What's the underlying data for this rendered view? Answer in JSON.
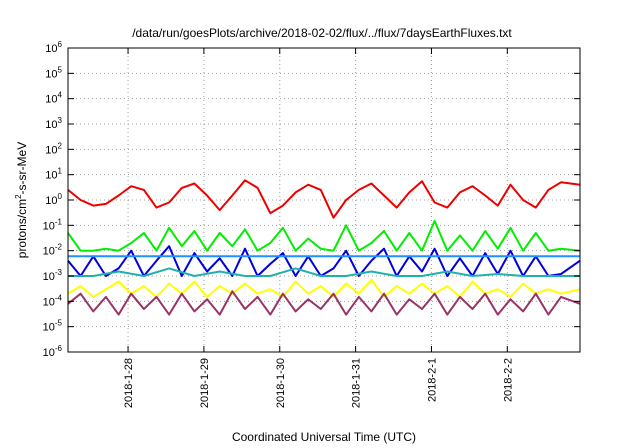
{
  "chart_data": {
    "type": "line",
    "title": "/data/run/goesPlots/archive/2018-02-02/flux/../flux/7daysEarthFluxes.txt",
    "xlabel": "Coordinated Universal Time (UTC)",
    "ylabel": "protons/cm2-s-sr-MeV",
    "ylabel_parts": {
      "pre": "protons/cm",
      "sup": "2",
      "post": "-s-sr-MeV"
    },
    "y_scale": "log",
    "ylim": [
      1e-06,
      1000000.0
    ],
    "y_ticks": [
      {
        "base": "10",
        "exp": "-6"
      },
      {
        "base": "10",
        "exp": "-5"
      },
      {
        "base": "10",
        "exp": "-4"
      },
      {
        "base": "10",
        "exp": "-3"
      },
      {
        "base": "10",
        "exp": "-2"
      },
      {
        "base": "10",
        "exp": "-1"
      },
      {
        "base": "10",
        "exp": "0"
      },
      {
        "base": "10",
        "exp": "1"
      },
      {
        "base": "10",
        "exp": "2"
      },
      {
        "base": "10",
        "exp": "3"
      },
      {
        "base": "10",
        "exp": "4"
      },
      {
        "base": "10",
        "exp": "5"
      },
      {
        "base": "10",
        "exp": "6"
      }
    ],
    "x_ticks": [
      "2018-1-28",
      "2018-1-29",
      "2018-1-30",
      "2018-1-31",
      "2018-2-1",
      "2018-2-2"
    ],
    "x_start": "2018-01-27 05:00",
    "x_end": "2018-02-02 23:00",
    "grid": true,
    "legend": "none",
    "series": [
      {
        "color": "#ee0000",
        "width": 2,
        "x": [
          "2018-01-27 05:00",
          "2018-01-27 09:00",
          "2018-01-27 13:00",
          "2018-01-27 17:00",
          "2018-01-27 21:00",
          "2018-01-28 01:00",
          "2018-01-28 05:00",
          "2018-01-28 09:00",
          "2018-01-28 13:00",
          "2018-01-28 17:00",
          "2018-01-28 21:00",
          "2018-01-29 01:00",
          "2018-01-29 05:00",
          "2018-01-29 09:00",
          "2018-01-29 13:00",
          "2018-01-29 17:00",
          "2018-01-29 21:00",
          "2018-01-30 01:00",
          "2018-01-30 05:00",
          "2018-01-30 09:00",
          "2018-01-30 13:00",
          "2018-01-30 17:00",
          "2018-01-30 21:00",
          "2018-01-31 01:00",
          "2018-01-31 05:00",
          "2018-01-31 09:00",
          "2018-01-31 13:00",
          "2018-01-31 17:00",
          "2018-01-31 21:00",
          "2018-02-01 01:00",
          "2018-02-01 05:00",
          "2018-02-01 09:00",
          "2018-02-01 13:00",
          "2018-02-01 17:00",
          "2018-02-01 21:00",
          "2018-02-02 01:00",
          "2018-02-02 05:00",
          "2018-02-02 09:00",
          "2018-02-02 13:00",
          "2018-02-02 17:00",
          "2018-02-02 23:00"
        ],
        "y": [
          2.5,
          1.0,
          0.6,
          0.7,
          1.5,
          3.5,
          2.5,
          0.5,
          0.8,
          3.0,
          4.5,
          1.5,
          0.4,
          1.5,
          6.0,
          3.0,
          0.3,
          0.6,
          2.0,
          4.0,
          2.5,
          0.2,
          1.0,
          2.5,
          4.5,
          1.5,
          0.5,
          2.0,
          5.5,
          0.8,
          0.5,
          2.0,
          3.5,
          1.5,
          0.6,
          4.0,
          1.0,
          0.5,
          2.5,
          5.0,
          4.0
        ]
      },
      {
        "color": "#00ee00",
        "width": 2,
        "x": [
          "2018-01-27 05:00",
          "2018-01-27 09:00",
          "2018-01-27 13:00",
          "2018-01-27 17:00",
          "2018-01-27 21:00",
          "2018-01-28 01:00",
          "2018-01-28 05:00",
          "2018-01-28 09:00",
          "2018-01-28 13:00",
          "2018-01-28 17:00",
          "2018-01-28 21:00",
          "2018-01-29 01:00",
          "2018-01-29 05:00",
          "2018-01-29 09:00",
          "2018-01-29 13:00",
          "2018-01-29 17:00",
          "2018-01-29 21:00",
          "2018-01-30 01:00",
          "2018-01-30 05:00",
          "2018-01-30 09:00",
          "2018-01-30 13:00",
          "2018-01-30 17:00",
          "2018-01-30 21:00",
          "2018-01-31 01:00",
          "2018-01-31 05:00",
          "2018-01-31 09:00",
          "2018-01-31 13:00",
          "2018-01-31 17:00",
          "2018-01-31 21:00",
          "2018-02-01 01:00",
          "2018-02-01 05:00",
          "2018-02-01 09:00",
          "2018-02-01 13:00",
          "2018-02-01 17:00",
          "2018-02-01 21:00",
          "2018-02-02 01:00",
          "2018-02-02 05:00",
          "2018-02-02 09:00",
          "2018-02-02 13:00",
          "2018-02-02 17:00",
          "2018-02-02 23:00"
        ],
        "y": [
          0.05,
          0.01,
          0.01,
          0.012,
          0.01,
          0.02,
          0.05,
          0.01,
          0.08,
          0.015,
          0.06,
          0.01,
          0.05,
          0.015,
          0.07,
          0.01,
          0.02,
          0.08,
          0.01,
          0.03,
          0.012,
          0.01,
          0.1,
          0.01,
          0.02,
          0.06,
          0.01,
          0.05,
          0.01,
          0.15,
          0.01,
          0.04,
          0.01,
          0.06,
          0.012,
          0.08,
          0.01,
          0.05,
          0.01,
          0.012,
          0.01
        ]
      },
      {
        "color": "#0000dd",
        "width": 2,
        "x": [
          "2018-01-27 05:00",
          "2018-01-27 09:00",
          "2018-01-27 13:00",
          "2018-01-27 17:00",
          "2018-01-27 21:00",
          "2018-01-28 01:00",
          "2018-01-28 05:00",
          "2018-01-28 09:00",
          "2018-01-28 13:00",
          "2018-01-28 17:00",
          "2018-01-28 21:00",
          "2018-01-29 01:00",
          "2018-01-29 05:00",
          "2018-01-29 09:00",
          "2018-01-29 13:00",
          "2018-01-29 17:00",
          "2018-01-29 21:00",
          "2018-01-30 01:00",
          "2018-01-30 05:00",
          "2018-01-30 09:00",
          "2018-01-30 13:00",
          "2018-01-30 17:00",
          "2018-01-30 21:00",
          "2018-01-31 01:00",
          "2018-01-31 05:00",
          "2018-01-31 09:00",
          "2018-01-31 13:00",
          "2018-01-31 17:00",
          "2018-01-31 21:00",
          "2018-02-01 01:00",
          "2018-02-01 05:00",
          "2018-02-01 09:00",
          "2018-02-01 13:00",
          "2018-02-01 17:00",
          "2018-02-01 21:00",
          "2018-02-02 01:00",
          "2018-02-02 05:00",
          "2018-02-02 09:00",
          "2018-02-02 13:00",
          "2018-02-02 17:00",
          "2018-02-02 23:00"
        ],
        "y": [
          0.004,
          0.001,
          0.006,
          0.001,
          0.002,
          0.01,
          0.001,
          0.004,
          0.015,
          0.001,
          0.008,
          0.0015,
          0.005,
          0.001,
          0.012,
          0.001,
          0.003,
          0.008,
          0.001,
          0.006,
          0.001,
          0.002,
          0.01,
          0.001,
          0.004,
          0.012,
          0.001,
          0.006,
          0.0015,
          0.012,
          0.001,
          0.005,
          0.001,
          0.008,
          0.0012,
          0.01,
          0.001,
          0.006,
          0.001,
          0.0012,
          0.004
        ]
      },
      {
        "color": "#1e90ff",
        "width": 2,
        "x": [
          "2018-01-27 05:00",
          "2018-01-28 01:00",
          "2018-01-28 21:00",
          "2018-01-29 17:00",
          "2018-01-30 13:00",
          "2018-01-31 09:00",
          "2018-02-01 05:00",
          "2018-02-02 01:00",
          "2018-02-02 23:00"
        ],
        "y": [
          0.006,
          0.006,
          0.006,
          0.006,
          0.006,
          0.006,
          0.006,
          0.006,
          0.006
        ]
      },
      {
        "color": "#20b2aa",
        "width": 2,
        "x": [
          "2018-01-27 05:00",
          "2018-01-27 13:00",
          "2018-01-27 21:00",
          "2018-01-28 05:00",
          "2018-01-28 13:00",
          "2018-01-28 21:00",
          "2018-01-29 05:00",
          "2018-01-29 13:00",
          "2018-01-29 21:00",
          "2018-01-30 05:00",
          "2018-01-30 13:00",
          "2018-01-30 21:00",
          "2018-01-31 05:00",
          "2018-01-31 13:00",
          "2018-01-31 21:00",
          "2018-02-01 05:00",
          "2018-02-01 13:00",
          "2018-02-01 21:00",
          "2018-02-02 05:00",
          "2018-02-02 13:00",
          "2018-02-02 23:00"
        ],
        "y": [
          0.001,
          0.001,
          0.0015,
          0.001,
          0.002,
          0.001,
          0.0015,
          0.001,
          0.001,
          0.002,
          0.001,
          0.001,
          0.0015,
          0.001,
          0.001,
          0.0015,
          0.001,
          0.0012,
          0.001,
          0.001,
          0.001
        ]
      },
      {
        "color": "#ffff00",
        "width": 2,
        "x": [
          "2018-01-27 05:00",
          "2018-01-27 09:00",
          "2018-01-27 13:00",
          "2018-01-27 17:00",
          "2018-01-27 21:00",
          "2018-01-28 01:00",
          "2018-01-28 05:00",
          "2018-01-28 09:00",
          "2018-01-28 13:00",
          "2018-01-28 17:00",
          "2018-01-28 21:00",
          "2018-01-29 01:00",
          "2018-01-29 05:00",
          "2018-01-29 09:00",
          "2018-01-29 13:00",
          "2018-01-29 17:00",
          "2018-01-29 21:00",
          "2018-01-30 01:00",
          "2018-01-30 05:00",
          "2018-01-30 09:00",
          "2018-01-30 13:00",
          "2018-01-30 17:00",
          "2018-01-30 21:00",
          "2018-01-31 01:00",
          "2018-01-31 05:00",
          "2018-01-31 09:00",
          "2018-01-31 13:00",
          "2018-01-31 17:00",
          "2018-01-31 21:00",
          "2018-02-01 01:00",
          "2018-02-01 05:00",
          "2018-02-01 09:00",
          "2018-02-01 13:00",
          "2018-02-01 17:00",
          "2018-02-01 21:00",
          "2018-02-02 01:00",
          "2018-02-02 05:00",
          "2018-02-02 09:00",
          "2018-02-02 13:00",
          "2018-02-02 17:00",
          "2018-02-02 23:00"
        ],
        "y": [
          0.0002,
          0.0004,
          0.00015,
          0.0003,
          0.0006,
          0.0002,
          0.0004,
          0.00015,
          0.0005,
          0.0002,
          0.0006,
          0.00015,
          0.0004,
          0.0002,
          0.0005,
          0.0002,
          0.0003,
          0.00015,
          0.0006,
          0.0002,
          0.0004,
          0.00015,
          0.0005,
          0.0002,
          0.0007,
          0.00015,
          0.0004,
          0.0002,
          0.0005,
          0.0002,
          0.0004,
          0.00015,
          0.0006,
          0.0002,
          0.0003,
          0.00015,
          0.0005,
          0.0002,
          0.0003,
          0.0002,
          0.0003
        ]
      },
      {
        "color": "#993366",
        "width": 2,
        "x": [
          "2018-01-27 05:00",
          "2018-01-27 09:00",
          "2018-01-27 13:00",
          "2018-01-27 17:00",
          "2018-01-27 21:00",
          "2018-01-28 01:00",
          "2018-01-28 05:00",
          "2018-01-28 09:00",
          "2018-01-28 13:00",
          "2018-01-28 17:00",
          "2018-01-28 21:00",
          "2018-01-29 01:00",
          "2018-01-29 05:00",
          "2018-01-29 09:00",
          "2018-01-29 13:00",
          "2018-01-29 17:00",
          "2018-01-29 21:00",
          "2018-01-30 01:00",
          "2018-01-30 05:00",
          "2018-01-30 09:00",
          "2018-01-30 13:00",
          "2018-01-30 17:00",
          "2018-01-30 21:00",
          "2018-01-31 01:00",
          "2018-01-31 05:00",
          "2018-01-31 09:00",
          "2018-01-31 13:00",
          "2018-01-31 17:00",
          "2018-01-31 21:00",
          "2018-02-01 01:00",
          "2018-02-01 05:00",
          "2018-02-01 09:00",
          "2018-02-01 13:00",
          "2018-02-01 17:00",
          "2018-02-01 21:00",
          "2018-02-02 01:00",
          "2018-02-02 05:00",
          "2018-02-02 09:00",
          "2018-02-02 13:00",
          "2018-02-02 17:00",
          "2018-02-02 23:00"
        ],
        "y": [
          8e-05,
          0.0002,
          4e-05,
          0.00015,
          3e-05,
          0.0002,
          5e-05,
          0.00015,
          3e-05,
          0.0002,
          4e-05,
          0.00012,
          3e-05,
          0.00025,
          5e-05,
          0.00015,
          3e-05,
          0.0002,
          4e-05,
          0.00012,
          5e-05,
          0.0002,
          3e-05,
          0.00015,
          4e-05,
          0.0002,
          3e-05,
          0.00012,
          5e-05,
          0.0002,
          3e-05,
          0.00015,
          5e-05,
          0.0002,
          3e-05,
          0.00012,
          4e-05,
          0.0002,
          3e-05,
          0.00015,
          8e-05
        ]
      }
    ]
  }
}
